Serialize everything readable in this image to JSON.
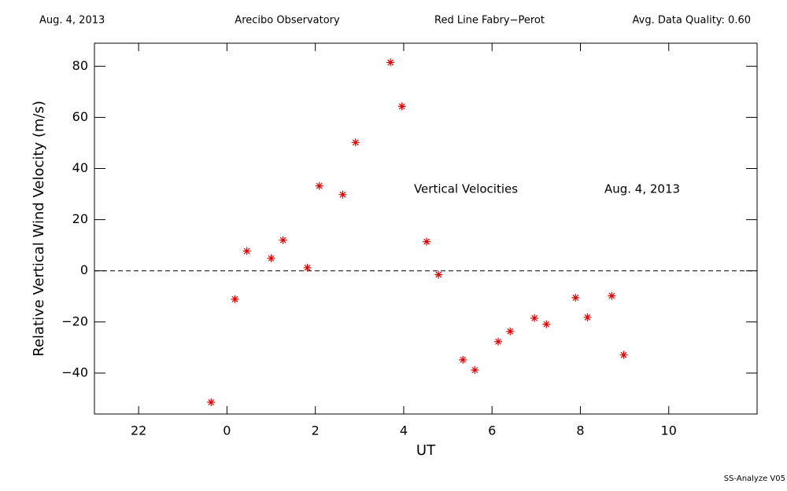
{
  "chart_data": {
    "type": "scatter",
    "header": [
      "Aug. 4, 2013",
      "Arecibo Observatory",
      "Red Line Fabry−Perot",
      "Avg. Data Quality: 0.60"
    ],
    "annotations": [
      "Vertical Velocities",
      "Aug. 4, 2013"
    ],
    "footer": "SS-Analyze V05",
    "x_label": "UT",
    "y_label": "Relative Vertical Wind Velocity (m/s)",
    "xlim": [
      -3,
      12
    ],
    "ylim": [
      -56,
      89
    ],
    "xticks": [
      {
        "value": -2,
        "label": "22"
      },
      0,
      2,
      4,
      6,
      8,
      10
    ],
    "yticks": [
      {
        "value": -40,
        "label": "−40"
      },
      {
        "value": -20,
        "label": "−20"
      },
      0,
      20,
      40,
      60,
      80
    ],
    "reference_line": 0,
    "series": [
      {
        "name": "Vertical Velocities",
        "color": "#e00000",
        "x": [
          -0.36,
          0.18,
          0.45,
          1.0,
          1.27,
          1.82,
          2.09,
          2.62,
          2.91,
          3.7,
          3.96,
          4.52,
          4.79,
          5.34,
          5.61,
          6.14,
          6.41,
          6.96,
          7.23,
          7.89,
          8.16,
          8.71,
          8.98
        ],
        "values": [
          -51.4,
          -11.1,
          7.7,
          4.9,
          12,
          1.2,
          33.2,
          29.8,
          50.2,
          81.5,
          64.3,
          11.4,
          -1.5,
          -34.8,
          -38.8,
          -27.7,
          -23.7,
          -18.5,
          -20.9,
          -10.5,
          -18.2,
          -9.8,
          -32.9
        ]
      }
    ]
  }
}
